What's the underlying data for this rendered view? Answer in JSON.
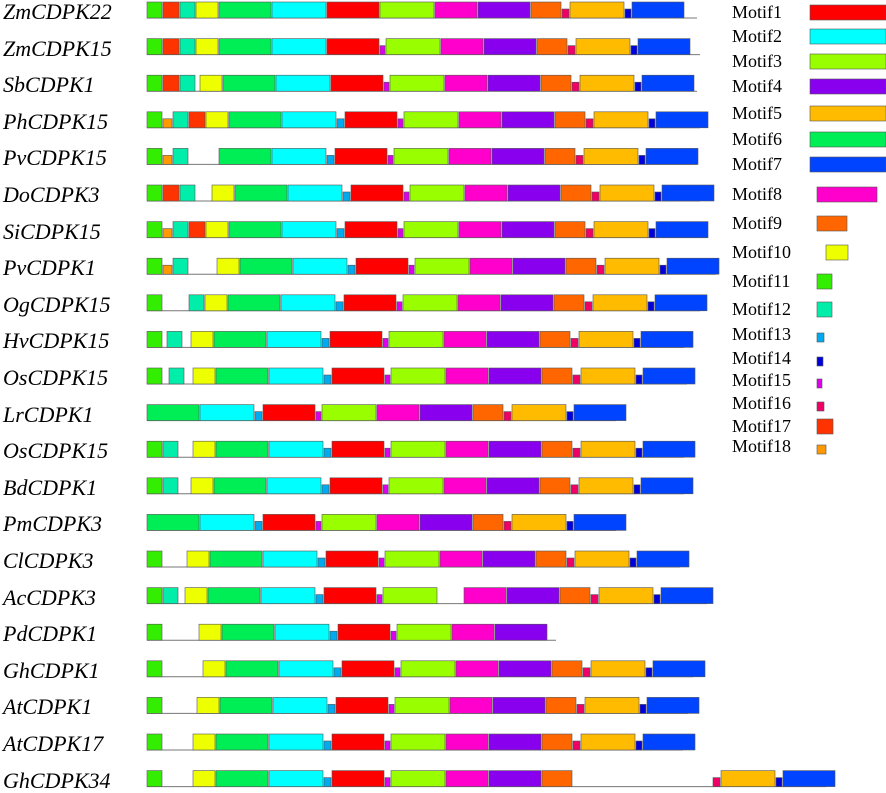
{
  "motifs": [
    {
      "name": "Motif1",
      "color": "#FF0000"
    },
    {
      "name": "Motif2",
      "color": "#00FFFF"
    },
    {
      "name": "Motif3",
      "color": "#99FF00"
    },
    {
      "name": "Motif4",
      "color": "#8800EE"
    },
    {
      "name": "Motif5",
      "color": "#FFBB00"
    },
    {
      "name": "Motif6",
      "color": "#00EE55"
    },
    {
      "name": "Motif7",
      "color": "#0044FF"
    },
    {
      "name": "Motif8",
      "color": "#FF00CC"
    },
    {
      "name": "Motif9",
      "color": "#FF6600"
    },
    {
      "name": "Motif10",
      "color": "#EEFF00"
    },
    {
      "name": "Motif11",
      "color": "#33EE00"
    },
    {
      "name": "Motif12",
      "color": "#00EEAA"
    },
    {
      "name": "Motif13",
      "color": "#00AAEE"
    },
    {
      "name": "Motif14",
      "color": "#0000DD"
    },
    {
      "name": "Motif15",
      "color": "#DD00EE"
    },
    {
      "name": "Motif16",
      "color": "#EE0066"
    },
    {
      "name": "Motif17",
      "color": "#FF3300"
    },
    {
      "name": "Motif18",
      "color": "#FF9900"
    }
  ],
  "sequences": [
    {
      "name": "ZmCDPK22",
      "motifs": [
        11,
        17,
        12,
        10,
        6,
        2,
        1,
        3,
        8,
        4,
        9,
        16,
        5,
        14,
        7
      ]
    },
    {
      "name": "ZmCDPK15",
      "motifs": [
        11,
        17,
        12,
        10,
        6,
        2,
        1,
        15,
        3,
        8,
        4,
        9,
        16,
        5,
        14,
        7
      ]
    },
    {
      "name": "SbCDPK1",
      "motifs": [
        11,
        17,
        12,
        10,
        6,
        2,
        1,
        15,
        3,
        8,
        4,
        9,
        16,
        5,
        14,
        7
      ]
    },
    {
      "name": "PhCDPK15",
      "motifs": [
        11,
        18,
        12,
        17,
        10,
        6,
        2,
        13,
        1,
        15,
        3,
        8,
        4,
        9,
        16,
        5,
        14,
        7
      ]
    },
    {
      "name": "PvCDPK15",
      "motifs": [
        11,
        18,
        12,
        6,
        2,
        13,
        1,
        15,
        3,
        8,
        4,
        9,
        16,
        5,
        14,
        7
      ]
    },
    {
      "name": "DoCDPK3",
      "motifs": [
        11,
        17,
        12,
        10,
        6,
        2,
        13,
        1,
        15,
        3,
        8,
        4,
        9,
        16,
        5,
        14,
        7
      ]
    },
    {
      "name": "SiCDPK15",
      "motifs": [
        11,
        18,
        12,
        17,
        10,
        6,
        2,
        13,
        1,
        15,
        3,
        8,
        4,
        9,
        16,
        5,
        14,
        7
      ]
    },
    {
      "name": "PvCDPK1",
      "motifs": [
        11,
        18,
        12,
        10,
        6,
        2,
        13,
        1,
        15,
        3,
        8,
        4,
        9,
        16,
        5,
        14,
        7
      ]
    },
    {
      "name": "OgCDPK15",
      "motifs": [
        11,
        12,
        10,
        6,
        2,
        13,
        1,
        15,
        3,
        8,
        4,
        9,
        16,
        5,
        14,
        7
      ]
    },
    {
      "name": "HvCDPK15",
      "motifs": [
        11,
        12,
        10,
        6,
        2,
        13,
        1,
        15,
        3,
        8,
        4,
        9,
        16,
        5,
        14,
        7
      ]
    },
    {
      "name": "OsCDPK15",
      "motifs": [
        11,
        12,
        10,
        6,
        2,
        13,
        1,
        15,
        3,
        8,
        4,
        9,
        16,
        5,
        14,
        7
      ]
    },
    {
      "name": "LrCDPK1",
      "motifs": [
        6,
        2,
        13,
        1,
        15,
        3,
        8,
        4,
        9,
        16,
        5,
        14,
        7
      ]
    },
    {
      "name": "OsCDPK15",
      "motifs": [
        11,
        12,
        10,
        6,
        2,
        13,
        1,
        15,
        3,
        8,
        4,
        9,
        16,
        5,
        14,
        7
      ]
    },
    {
      "name": "BdCDPK1",
      "motifs": [
        11,
        12,
        10,
        6,
        2,
        13,
        1,
        15,
        3,
        8,
        4,
        9,
        16,
        5,
        14,
        7
      ]
    },
    {
      "name": "PmCDPK3",
      "motifs": [
        6,
        2,
        13,
        1,
        15,
        3,
        8,
        4,
        9,
        16,
        5,
        14,
        7
      ]
    },
    {
      "name": "ClCDPK3",
      "motifs": [
        11,
        10,
        6,
        2,
        13,
        1,
        15,
        3,
        8,
        4,
        9,
        16,
        5,
        14,
        7
      ]
    },
    {
      "name": "AcCDPK3",
      "motifs": [
        11,
        12,
        10,
        6,
        2,
        13,
        1,
        15,
        3,
        8,
        4,
        9,
        16,
        5,
        14,
        7
      ]
    },
    {
      "name": "PdCDPK1",
      "motifs": [
        11,
        10,
        6,
        2,
        13,
        1,
        15,
        3,
        8,
        4
      ]
    },
    {
      "name": "GhCDPK1",
      "motifs": [
        11,
        10,
        6,
        2,
        13,
        1,
        15,
        3,
        8,
        4,
        9,
        16,
        5,
        14,
        7
      ]
    },
    {
      "name": "AtCDPK1",
      "motifs": [
        11,
        10,
        6,
        2,
        13,
        1,
        15,
        3,
        8,
        4,
        9,
        16,
        5,
        14,
        7
      ]
    },
    {
      "name": "AtCDPK17",
      "motifs": [
        11,
        10,
        6,
        2,
        13,
        1,
        15,
        3,
        8,
        4,
        9,
        16,
        5,
        14,
        7
      ]
    },
    {
      "name": "GhCDPK34",
      "motifs": [
        11,
        10,
        6,
        2,
        13,
        1,
        15,
        3,
        8,
        4,
        9,
        16,
        5,
        14,
        7
      ]
    }
  ]
}
